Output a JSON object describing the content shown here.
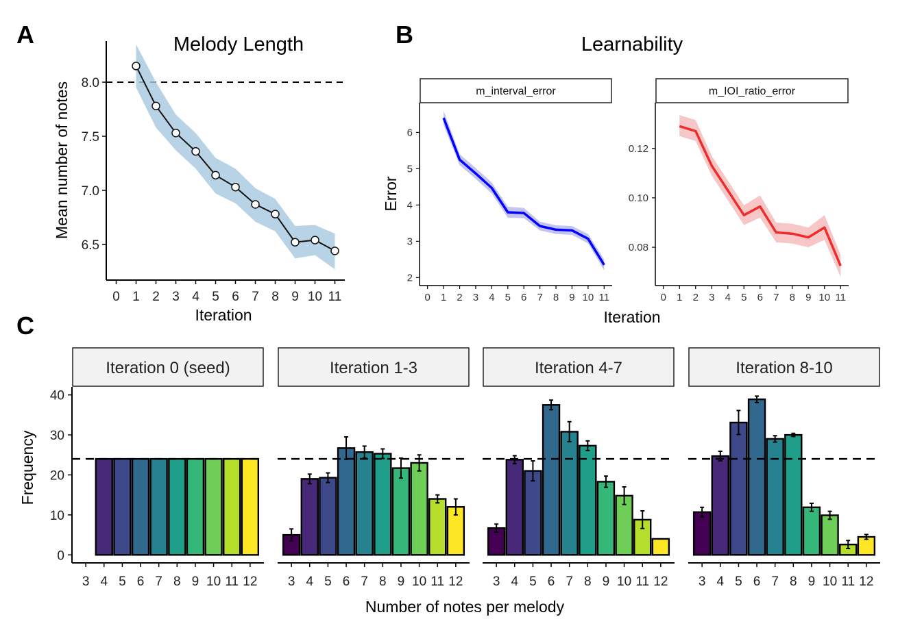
{
  "panels": {
    "a": {
      "letter": "A",
      "title": "Melody Length"
    },
    "b": {
      "letter": "B",
      "title": "Learnability"
    },
    "c": {
      "letter": "C"
    }
  },
  "chart_data": [
    {
      "id": "A",
      "type": "line",
      "title": "Melody Length",
      "xlabel": "Iteration",
      "ylabel": "Mean number of notes",
      "x_ticks": [
        0,
        1,
        2,
        3,
        4,
        5,
        6,
        7,
        8,
        9,
        10,
        11
      ],
      "y_ticks": [
        6.5,
        7.0,
        7.5,
        8.0
      ],
      "y_tick_labels": [
        "6.5",
        "7.0",
        "7.5",
        "8.0"
      ],
      "xlim": [
        -0.5,
        11.5
      ],
      "ylim": [
        6.17,
        8.38
      ],
      "reference_line": 8.0,
      "x": [
        1,
        2,
        3,
        4,
        5,
        6,
        7,
        8,
        9,
        10,
        11
      ],
      "y": [
        8.15,
        7.78,
        7.53,
        7.36,
        7.14,
        7.03,
        6.87,
        6.78,
        6.52,
        6.54,
        6.44
      ],
      "ci_low": [
        7.95,
        7.58,
        7.37,
        7.2,
        6.97,
        6.88,
        6.71,
        6.62,
        6.37,
        6.4,
        6.27
      ],
      "ci_high": [
        8.35,
        8.0,
        7.7,
        7.53,
        7.3,
        7.2,
        7.02,
        6.92,
        6.67,
        6.68,
        6.6
      ],
      "ribbon_color": "#a6c8e0",
      "line_color": "#111111"
    },
    {
      "id": "B",
      "type": "line",
      "title": "Learnability",
      "xlabel": "Iteration",
      "ylabel": "Error",
      "facets": [
        {
          "strip": "m_interval_error",
          "color": "#0000ff",
          "ribbon_color": "#b8b8f2",
          "x_ticks": [
            0,
            1,
            2,
            3,
            4,
            5,
            6,
            7,
            8,
            9,
            10,
            11
          ],
          "y_ticks": [
            2,
            3,
            4,
            5,
            6
          ],
          "y_tick_labels": [
            "2",
            "3",
            "4",
            "5",
            "6"
          ],
          "xlim": [
            -0.5,
            11.5
          ],
          "ylim": [
            1.78,
            6.82
          ],
          "x": [
            1,
            2,
            3,
            4,
            5,
            6,
            7,
            8,
            9,
            10,
            11
          ],
          "y": [
            6.4,
            5.25,
            4.87,
            4.47,
            3.8,
            3.78,
            3.42,
            3.32,
            3.3,
            3.07,
            2.35
          ],
          "ci_low": [
            6.2,
            5.1,
            4.72,
            4.32,
            3.65,
            3.64,
            3.3,
            3.2,
            3.18,
            2.94,
            2.2
          ],
          "ci_high": [
            6.6,
            5.4,
            5.02,
            4.62,
            3.95,
            3.92,
            3.54,
            3.44,
            3.42,
            3.2,
            2.5
          ]
        },
        {
          "strip": "m_IOI_ratio_error",
          "color": "#ee2c2c",
          "ribbon_color": "#f6bcbc",
          "x_ticks": [
            0,
            1,
            2,
            3,
            4,
            5,
            6,
            7,
            8,
            9,
            10,
            11
          ],
          "y_ticks": [
            0.08,
            0.1,
            0.12
          ],
          "y_tick_labels": [
            "0.08",
            "0.10",
            "0.12"
          ],
          "xlim": [
            -0.5,
            11.5
          ],
          "ylim": [
            0.0645,
            0.1385
          ],
          "x": [
            1,
            2,
            3,
            4,
            5,
            6,
            7,
            8,
            9,
            10,
            11
          ],
          "y": [
            0.129,
            0.127,
            0.113,
            0.103,
            0.093,
            0.0965,
            0.086,
            0.0855,
            0.084,
            0.088,
            0.0725
          ],
          "ci_low": [
            0.125,
            0.123,
            0.109,
            0.099,
            0.089,
            0.092,
            0.082,
            0.0815,
            0.08,
            0.083,
            0.068
          ],
          "ci_high": [
            0.1335,
            0.1315,
            0.117,
            0.107,
            0.097,
            0.101,
            0.09,
            0.0895,
            0.088,
            0.093,
            0.077
          ]
        }
      ]
    },
    {
      "id": "C",
      "type": "bar",
      "xlabel": "Number of notes per melody",
      "ylabel": "Frequency",
      "categories": [
        3,
        4,
        5,
        6,
        7,
        8,
        9,
        10,
        11,
        12
      ],
      "category_labels": [
        "3",
        "4",
        "5",
        "6",
        "7",
        "8",
        "9",
        "10",
        "11",
        "12"
      ],
      "y_ticks": [
        0,
        10,
        20,
        30,
        40
      ],
      "ylim": [
        -2,
        42
      ],
      "reference_line": 24,
      "colors": [
        "#440154",
        "#482878",
        "#3e4989",
        "#31688e",
        "#26828e",
        "#1f9e89",
        "#35b779",
        "#6ece58",
        "#b5de2b",
        "#fde725"
      ],
      "facets": [
        {
          "strip": "Iteration 0 (seed)",
          "values": [
            null,
            24,
            24,
            24,
            24,
            24,
            24,
            24,
            24,
            24
          ],
          "errors": [
            null,
            0,
            0,
            0,
            0,
            0,
            0,
            0,
            0,
            0
          ]
        },
        {
          "strip": "Iteration 1-3",
          "values": [
            5,
            19,
            19.3,
            26.7,
            25.7,
            25.3,
            21.7,
            23,
            14,
            12
          ],
          "errors": [
            1.5,
            1.2,
            1.2,
            2.8,
            1.5,
            1.2,
            2.5,
            2,
            1,
            2
          ]
        },
        {
          "strip": "Iteration 4-7",
          "values": [
            6.7,
            23.8,
            21,
            37.5,
            30.8,
            27.3,
            18.3,
            14.8,
            8.8,
            4
          ],
          "errors": [
            1,
            1,
            2.5,
            1.2,
            2.5,
            1.2,
            1.4,
            2.2,
            2.2,
            0
          ]
        },
        {
          "strip": "Iteration 8-10",
          "values": [
            10.7,
            24.7,
            33.1,
            38.9,
            29,
            30,
            11.9,
            9.9,
            2.6,
            4.5
          ],
          "errors": [
            1.2,
            1.2,
            3,
            0.8,
            0.8,
            0.4,
            1,
            1,
            1,
            0.6
          ]
        }
      ]
    }
  ]
}
